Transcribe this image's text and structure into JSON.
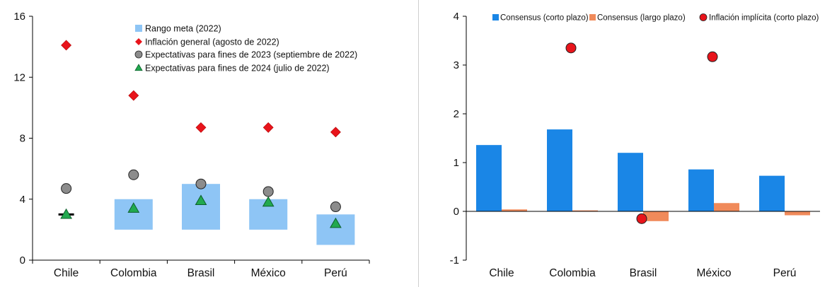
{
  "colors": {
    "target_band": "#8ec5f5",
    "general_inflation": "#e8141b",
    "expect_2023": "#8c8c8c",
    "expect_2024": "#22a94f",
    "consensus_short": "#1a86e6",
    "consensus_long": "#f08a5a",
    "implicit": "#e8141b",
    "axis": "#000000",
    "divider": "#cfcfcf"
  },
  "chart_data": [
    {
      "type": "bar",
      "categories": [
        "Chile",
        "Colombia",
        "Brasil",
        "México",
        "Perú"
      ],
      "ylim": [
        0,
        16
      ],
      "yticks": [
        "0",
        "4",
        "8",
        "12",
        "16"
      ],
      "xlabel": "",
      "ylabel": "",
      "legend_position": "top-right",
      "series": [
        {
          "name": "Rango meta (2022)",
          "kind": "range-bar",
          "low": [
            3,
            2,
            2,
            2,
            1
          ],
          "high": [
            3,
            4,
            5,
            4,
            3
          ]
        },
        {
          "name": "Inflación general (agosto de 2022)",
          "kind": "diamond",
          "values": [
            14.1,
            10.8,
            8.7,
            8.7,
            8.4
          ]
        },
        {
          "name": "Expectativas para fines de 2023 (septiembre de 2022)",
          "kind": "circle",
          "values": [
            4.7,
            5.6,
            5.0,
            4.5,
            3.5
          ]
        },
        {
          "name": "Expectativas para fines de 2024 (julio de 2022)",
          "kind": "triangle",
          "values": [
            3.0,
            3.4,
            3.9,
            3.8,
            2.4
          ]
        }
      ]
    },
    {
      "type": "bar",
      "categories": [
        "Chile",
        "Colombia",
        "Brasil",
        "México",
        "Perú"
      ],
      "ylim": [
        -1,
        4
      ],
      "yticks": [
        "-1",
        "0",
        "1",
        "2",
        "3",
        "4"
      ],
      "xlabel": "",
      "ylabel": "",
      "legend_position": "top",
      "series": [
        {
          "name": "Consensus (corto plazo)",
          "kind": "bar",
          "values": [
            1.36,
            1.68,
            1.2,
            0.86,
            0.73
          ]
        },
        {
          "name": "Consensus (largo plazo)",
          "kind": "bar",
          "values": [
            0.04,
            0.02,
            -0.2,
            0.17,
            -0.08
          ]
        },
        {
          "name": "Inflación implícita (corto plazo)",
          "kind": "circle",
          "values": [
            null,
            3.35,
            -0.15,
            3.17,
            null
          ]
        }
      ]
    }
  ]
}
